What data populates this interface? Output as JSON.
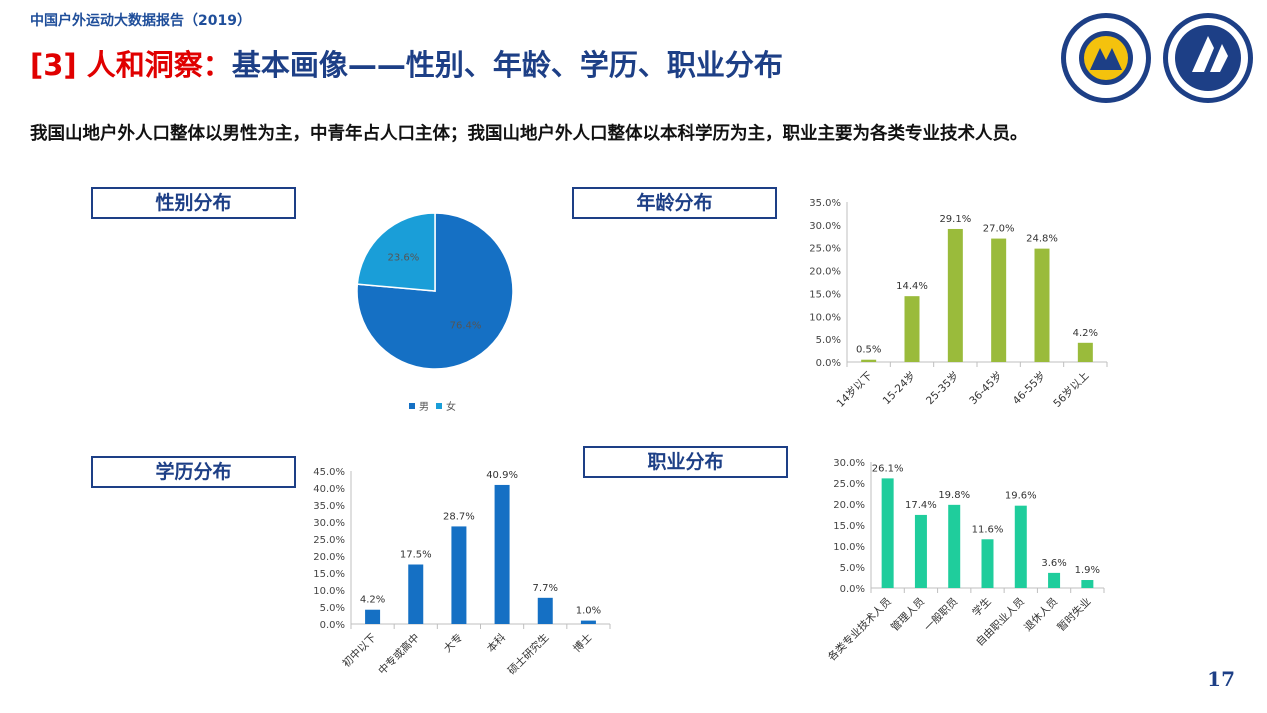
{
  "header": {
    "report_title": "中国户外运动大数据报告（2019）",
    "main_title_tag": "[3] ",
    "main_title_red": "人和洞察：",
    "main_title_rest": "基本画像——性别、年龄、学历、职业分布",
    "summary": "我国山地户外人口整体以男性为主，中青年占人口主体；我国山地户外人口整体以本科学历为主，职业主要为各类专业技术人员。"
  },
  "sections": {
    "gender": "性别分布",
    "age": "年龄分布",
    "education": "学历分布",
    "occupation": "职业分布"
  },
  "page_number": "17",
  "colors": {
    "male": "#1570c4",
    "female": "#1a9ed8",
    "age_bar": "#9abb3b",
    "edu_bar": "#1570c4",
    "occ_bar": "#1fcd9c",
    "title_blue": "#1d3f86",
    "title_red": "#e00000"
  },
  "chart_data": [
    {
      "id": "gender",
      "type": "pie",
      "labels": [
        "男",
        "女"
      ],
      "values": [
        76.4,
        23.6
      ],
      "value_labels": [
        "76.4%",
        "23.6%"
      ],
      "legend": "bottom"
    },
    {
      "id": "age",
      "type": "bar",
      "categories": [
        "14岁以下",
        "15-24岁",
        "25-35岁",
        "36-45岁",
        "46-55岁",
        "56岁以上"
      ],
      "values": [
        0.5,
        14.4,
        29.1,
        27.0,
        24.8,
        4.2
      ],
      "value_labels": [
        "0.5%",
        "14.4%",
        "29.1%",
        "27.0%",
        "24.8%",
        "4.2%"
      ],
      "ylim": [
        0,
        35
      ],
      "yticks": [
        "0.0%",
        "5.0%",
        "10.0%",
        "15.0%",
        "20.0%",
        "25.0%",
        "30.0%",
        "35.0%"
      ],
      "grid": false
    },
    {
      "id": "education",
      "type": "bar",
      "categories": [
        "初中以下",
        "中专或高中",
        "大专",
        "本科",
        "硕士研究生",
        "博士"
      ],
      "values": [
        4.2,
        17.5,
        28.7,
        40.9,
        7.7,
        1.0
      ],
      "value_labels": [
        "4.2%",
        "17.5%",
        "28.7%",
        "40.9%",
        "7.7%",
        "1.0%"
      ],
      "ylim": [
        0,
        45
      ],
      "yticks": [
        "0.0%",
        "5.0%",
        "10.0%",
        "15.0%",
        "20.0%",
        "25.0%",
        "30.0%",
        "35.0%",
        "40.0%",
        "45.0%"
      ],
      "grid": false
    },
    {
      "id": "occupation",
      "type": "bar",
      "categories": [
        "各类专业技术人员",
        "管理人员",
        "一般职员",
        "学生",
        "自由职业人员",
        "退休人员",
        "暂时失业"
      ],
      "values": [
        26.1,
        17.4,
        19.8,
        11.6,
        19.6,
        3.6,
        1.9
      ],
      "value_labels": [
        "26.1%",
        "17.4%",
        "19.8%",
        "11.6%",
        "19.6%",
        "3.6%",
        "1.9%"
      ],
      "ylim": [
        0,
        30
      ],
      "yticks": [
        "0.0%",
        "5.0%",
        "10.0%",
        "15.0%",
        "20.0%",
        "25.0%",
        "30.0%"
      ],
      "grid": false
    }
  ]
}
